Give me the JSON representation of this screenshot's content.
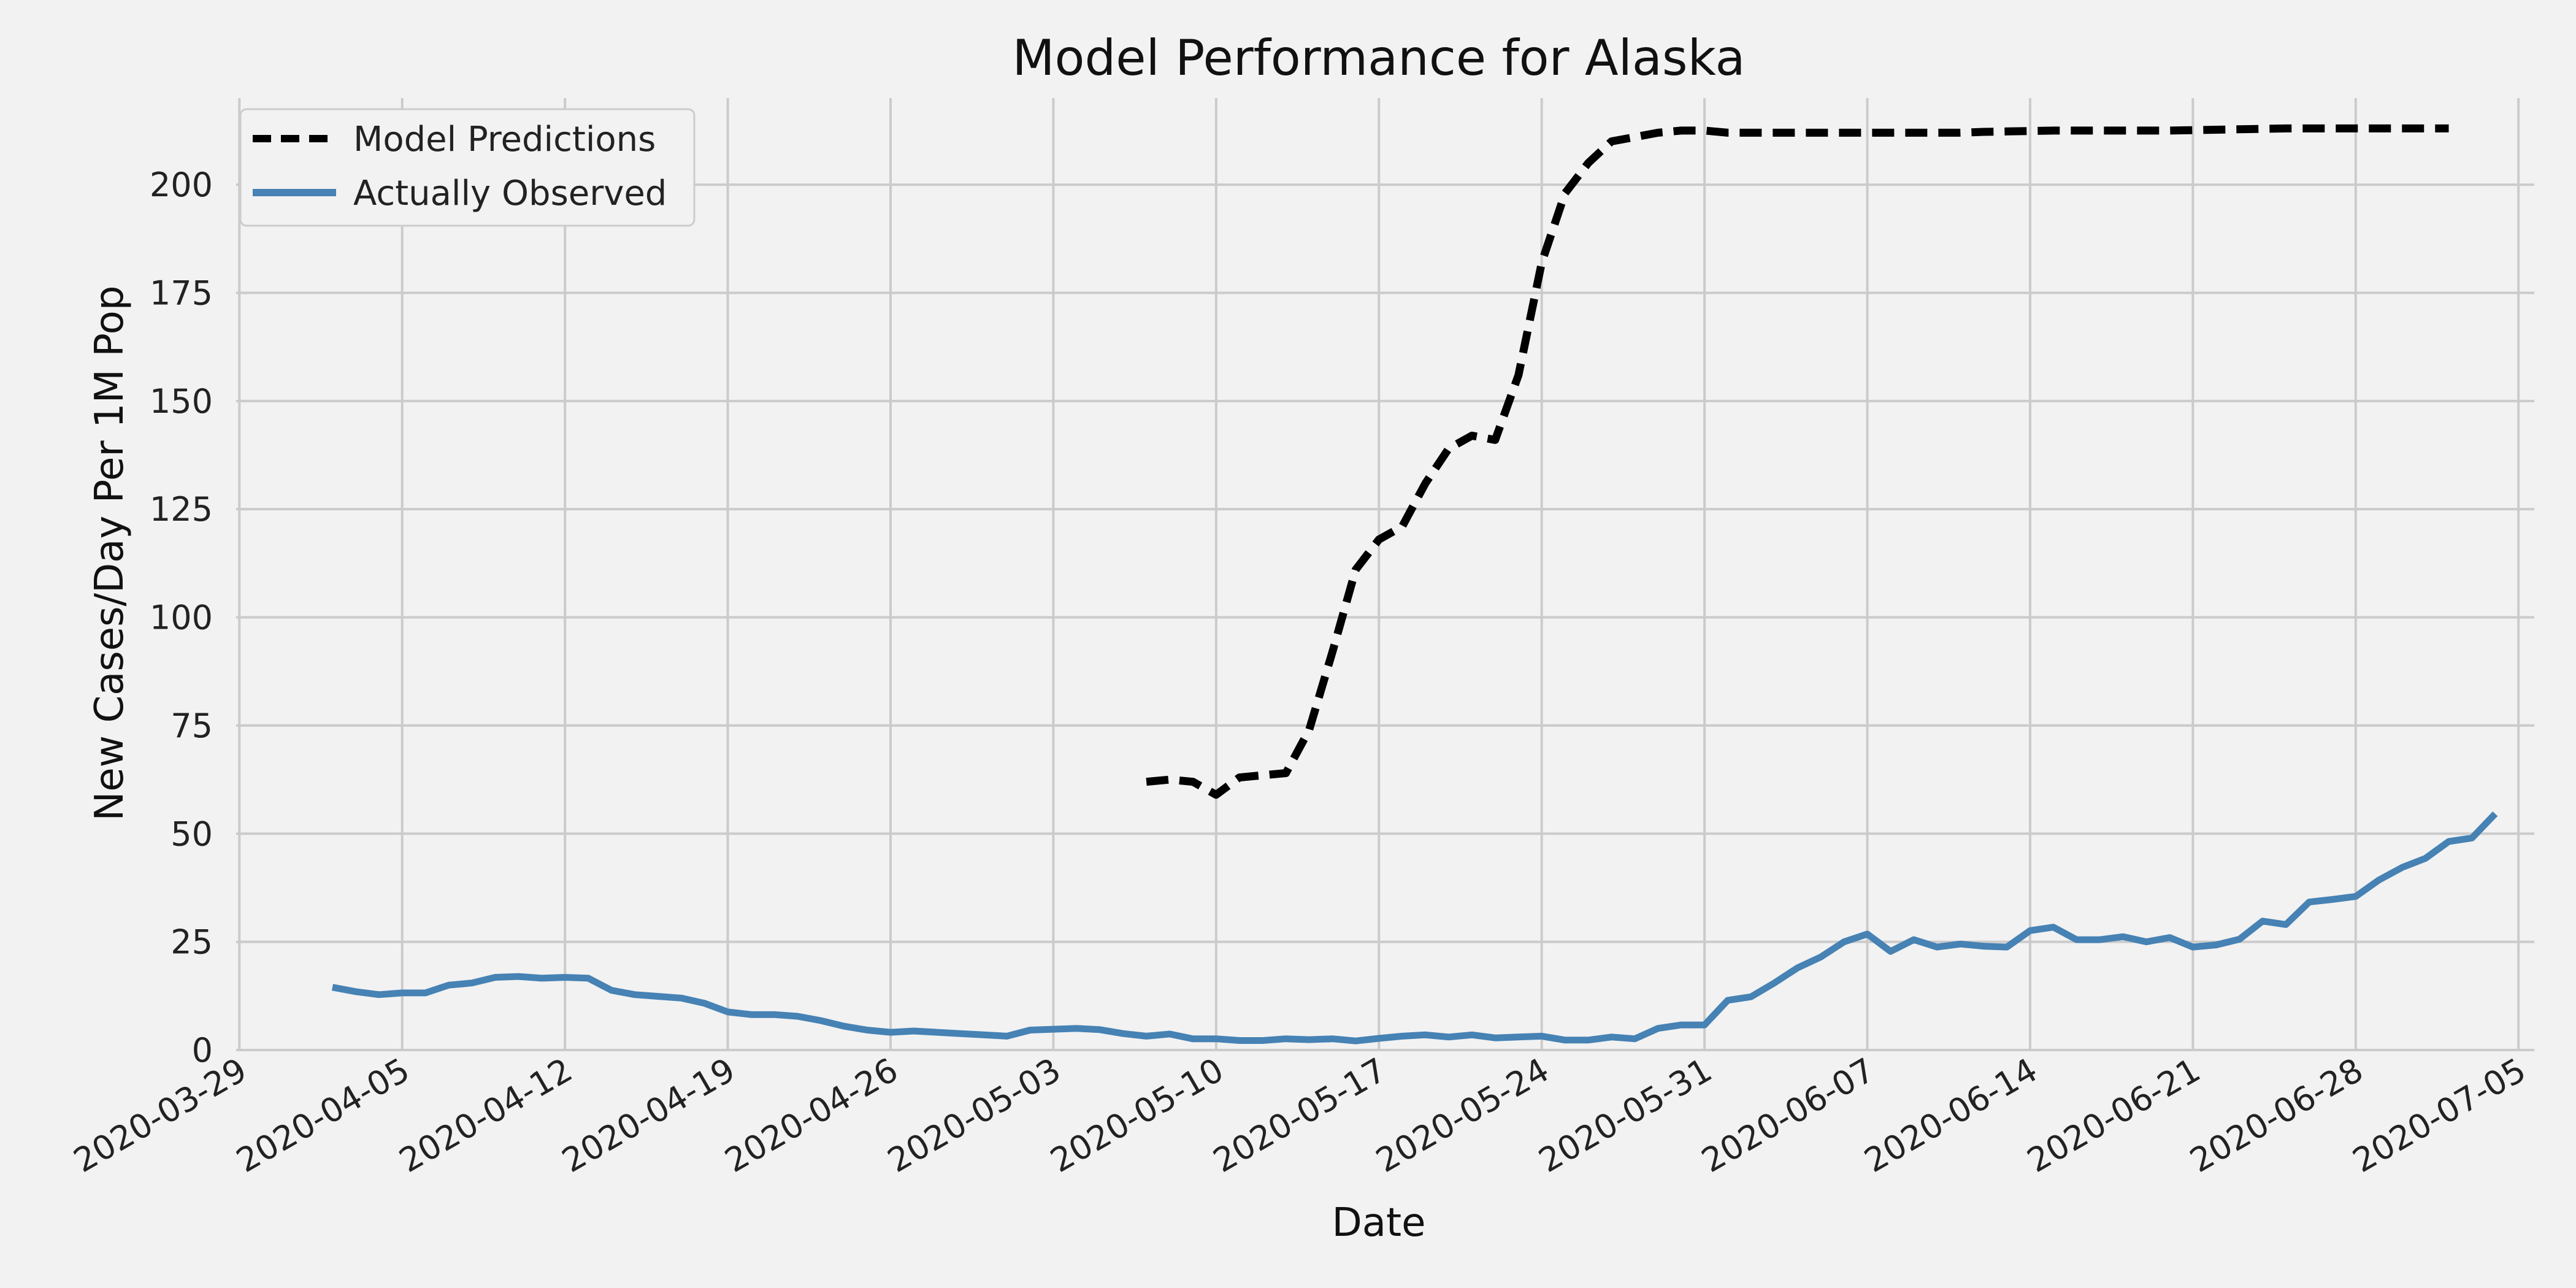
{
  "chart_data": {
    "type": "line",
    "title": "Model Performance for Alaska",
    "xlabel": "Date",
    "ylabel": "New Cases/Day Per 1M Pop",
    "xlim": [
      "2020-03-29",
      "2020-07-05"
    ],
    "ylim": [
      0,
      220
    ],
    "grid": true,
    "legend_position": "top-left",
    "x_ticks": [
      "2020-03-29",
      "2020-04-05",
      "2020-04-12",
      "2020-04-19",
      "2020-04-26",
      "2020-05-03",
      "2020-05-10",
      "2020-05-17",
      "2020-05-24",
      "2020-05-31",
      "2020-06-07",
      "2020-06-14",
      "2020-06-21",
      "2020-06-28",
      "2020-07-05"
    ],
    "y_ticks": [
      0,
      25,
      50,
      75,
      100,
      125,
      150,
      175,
      200
    ],
    "series": [
      {
        "name": "Model Predictions",
        "color": "#000000",
        "style": "dashed",
        "start_date": "2020-05-07",
        "values": [
          62,
          62.5,
          62,
          59,
          63,
          63.5,
          64,
          74,
          92,
          111,
          118,
          121,
          131,
          139,
          142,
          141,
          156,
          182,
          198,
          205,
          210,
          211,
          212,
          212.5,
          212.5,
          212,
          212,
          212,
          212,
          212,
          212,
          212,
          212,
          212,
          212,
          212,
          212.2,
          212.3,
          212.4,
          212.5,
          212.5,
          212.5,
          212.5,
          212.5,
          212.5,
          212.6,
          212.7,
          212.8,
          212.9,
          213,
          213,
          213,
          213,
          213,
          213,
          213,
          213
        ]
      },
      {
        "name": "Actually Observed",
        "color": "#4682b4",
        "style": "solid",
        "start_date": "2020-04-02",
        "values": [
          14.5,
          13.5,
          12.8,
          13.2,
          13.2,
          15,
          15.5,
          16.8,
          17,
          16.6,
          16.8,
          16.6,
          13.8,
          12.8,
          12.4,
          12,
          10.8,
          8.8,
          8.2,
          8.2,
          7.8,
          6.8,
          5.5,
          4.6,
          4.1,
          4.4,
          4.1,
          3.8,
          3.5,
          3.2,
          4.6,
          4.8,
          5,
          4.7,
          3.8,
          3.2,
          3.7,
          2.6,
          2.6,
          2.2,
          2.2,
          2.6,
          2.4,
          2.6,
          2.1,
          2.7,
          3.2,
          3.5,
          3,
          3.5,
          2.8,
          3,
          3.2,
          2.3,
          2.3,
          3,
          2.6,
          5,
          5.8,
          5.8,
          11.5,
          12.3,
          15.5,
          19,
          21.5,
          25,
          26.8,
          22.8,
          25.5,
          23.8,
          24.5,
          24,
          23.8,
          27.6,
          28.4,
          25.5,
          25.5,
          26.2,
          25,
          26,
          23.8,
          24.3,
          25.6,
          29.8,
          29,
          34.2,
          34.8,
          35.5,
          39.3,
          42.2,
          44.3,
          48.2,
          49,
          54.6
        ]
      }
    ]
  }
}
